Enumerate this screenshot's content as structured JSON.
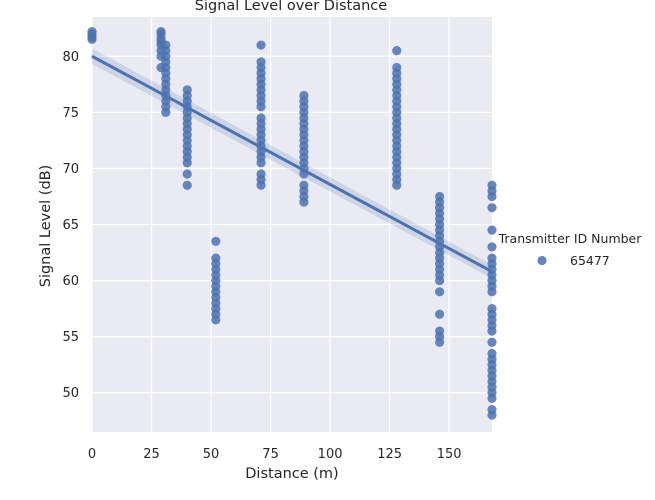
{
  "chart_data": {
    "type": "scatter",
    "title": "Signal Level over Distance",
    "xlabel": "Distance (m)",
    "ylabel": "Signal Level (dB)",
    "xlim": [
      0,
      168
    ],
    "ylim": [
      46.5,
      83.5
    ],
    "x_ticks": [
      0,
      25,
      50,
      75,
      100,
      125,
      150
    ],
    "y_ticks": [
      50,
      55,
      60,
      65,
      70,
      75,
      80
    ],
    "grid": true,
    "background": "#eaeaf2",
    "point_color": "#4c72b0",
    "legend": {
      "title": "Transmitter ID Number",
      "position": "right",
      "entries": [
        "65477"
      ]
    },
    "series": [
      {
        "name": "65477",
        "points": [
          {
            "x": 0,
            "ys": [
              81.5,
              81.7,
              82.0,
              82.2
            ]
          },
          {
            "x": 29,
            "ys": [
              79.0,
              80.0,
              80.5,
              81.0,
              81.3,
              81.6,
              82.0,
              82.2
            ]
          },
          {
            "x": 31,
            "ys": [
              75.0,
              75.5,
              76.0,
              76.5,
              77.0,
              77.5,
              78.0,
              78.5,
              79.0,
              79.5,
              80.0,
              80.5,
              81.0
            ]
          },
          {
            "x": 40,
            "ys": [
              68.5,
              69.5,
              70.5,
              71.0,
              71.5,
              72.0,
              72.5,
              73.0,
              73.5,
              74.0,
              74.5,
              75.0,
              75.5,
              76.0,
              76.5,
              77.0
            ]
          },
          {
            "x": 52,
            "ys": [
              56.5,
              57.0,
              57.5,
              58.0,
              58.5,
              59.0,
              59.5,
              60.0,
              60.5,
              61.0,
              61.5,
              62.0,
              63.5
            ]
          },
          {
            "x": 71,
            "ys": [
              68.5,
              69.0,
              69.5,
              70.5,
              71.0,
              71.5,
              72.0,
              72.5,
              73.0,
              73.5,
              74.0,
              74.5,
              75.5,
              76.0,
              76.5,
              77.0,
              77.5,
              78.0,
              78.5,
              79.0,
              79.5,
              81.0
            ]
          },
          {
            "x": 89,
            "ys": [
              67.0,
              67.5,
              68.0,
              68.5,
              69.5,
              70.0,
              70.5,
              71.0,
              71.5,
              72.0,
              72.5,
              73.0,
              73.5,
              74.0,
              74.5,
              75.0,
              75.5,
              76.0,
              76.5
            ]
          },
          {
            "x": 128,
            "ys": [
              68.5,
              69.0,
              69.5,
              70.0,
              70.5,
              71.0,
              71.5,
              72.0,
              72.5,
              73.0,
              73.5,
              74.0,
              74.5,
              75.0,
              75.5,
              76.0,
              76.5,
              77.0,
              77.5,
              78.0,
              78.5,
              79.0,
              80.5
            ]
          },
          {
            "x": 146,
            "ys": [
              54.5,
              55.0,
              55.5,
              57.0,
              59.0,
              60.0,
              60.5,
              61.0,
              61.5,
              62.0,
              62.5,
              63.0,
              63.5,
              64.0,
              64.5,
              65.0,
              65.5,
              66.0,
              66.5,
              67.0,
              67.5
            ]
          },
          {
            "x": 168,
            "ys": [
              48.0,
              48.5,
              49.5,
              50.0,
              50.5,
              51.0,
              51.5,
              52.0,
              52.5,
              53.0,
              53.5,
              54.5,
              55.5,
              56.0,
              56.5,
              57.0,
              57.5,
              59.0,
              59.5,
              60.0,
              60.5,
              61.0,
              61.5,
              62.0,
              63.0,
              64.5,
              66.5,
              67.5,
              68.0,
              68.5
            ]
          }
        ]
      }
    ],
    "regression": {
      "x": [
        0,
        168
      ],
      "y": [
        80.0,
        60.8
      ],
      "ci_half_width": [
        0.7,
        0.6
      ]
    }
  }
}
